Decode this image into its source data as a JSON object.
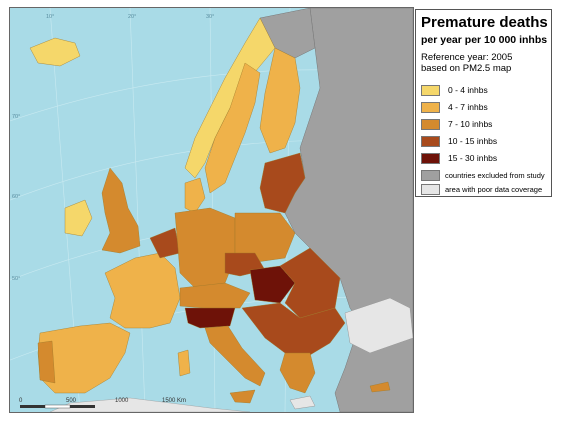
{
  "legend": {
    "title": "Premature deaths",
    "subtitle": "per year per 10 000 inhbs",
    "reference_line1": "Reference year: 2005",
    "reference_line2": "based on PM2.5 map",
    "classes": [
      {
        "label": "0 - 4  inhbs",
        "color": "#f5d76a"
      },
      {
        "label": "4 - 7  inhbs",
        "color": "#efb24a"
      },
      {
        "label": "7 - 10  inhbs",
        "color": "#d48a2e"
      },
      {
        "label": "10 - 15  inhbs",
        "color": "#a84a1c"
      },
      {
        "label": "15 - 30  inhbs",
        "color": "#6e1208"
      }
    ],
    "excluded": {
      "label": "countries excluded from study",
      "color": "#a0a0a0"
    },
    "poor_coverage": {
      "label": "area with poor data coverage",
      "color": "#e6e6e6"
    }
  },
  "map": {
    "sea_color": "#a9dbe7",
    "graticule_labels": [
      "10°",
      "20°",
      "30°",
      "40°",
      "50°",
      "60°",
      "70°"
    ],
    "scale_bar": {
      "labels": [
        "0",
        "500",
        "1000",
        "1500 Km"
      ]
    }
  }
}
